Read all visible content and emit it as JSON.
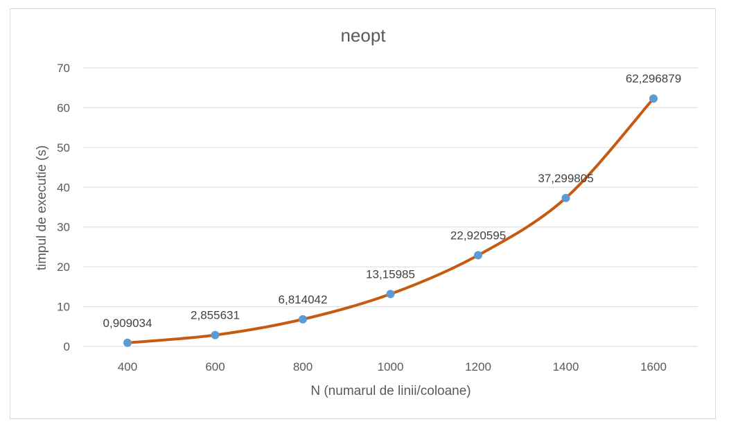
{
  "chart_data": {
    "type": "line",
    "title": "neopt",
    "xlabel": "N (numarul de linii/coloane)",
    "ylabel": "timpul de executie (s)",
    "categories": [
      "400",
      "600",
      "800",
      "1000",
      "1200",
      "1400",
      "1600"
    ],
    "series": [
      {
        "values": [
          0.909034,
          2.855631,
          6.814042,
          13.15985,
          22.920595,
          37.299805,
          62.296879
        ],
        "data_labels": [
          "0,909034",
          "2,855631",
          "6,814042",
          "13,15985",
          "22,920595",
          "37,299805",
          "62,296879"
        ],
        "line_color": "#c55a11",
        "marker_color": "#5b9bd5",
        "smooth": true
      }
    ],
    "ylim": [
      0,
      70
    ],
    "yticks": [
      0,
      10,
      20,
      30,
      40,
      50,
      60,
      70
    ],
    "ytick_labels": [
      "0",
      "10",
      "20",
      "30",
      "40",
      "50",
      "60",
      "70"
    ],
    "grid": true,
    "legend": "none"
  }
}
